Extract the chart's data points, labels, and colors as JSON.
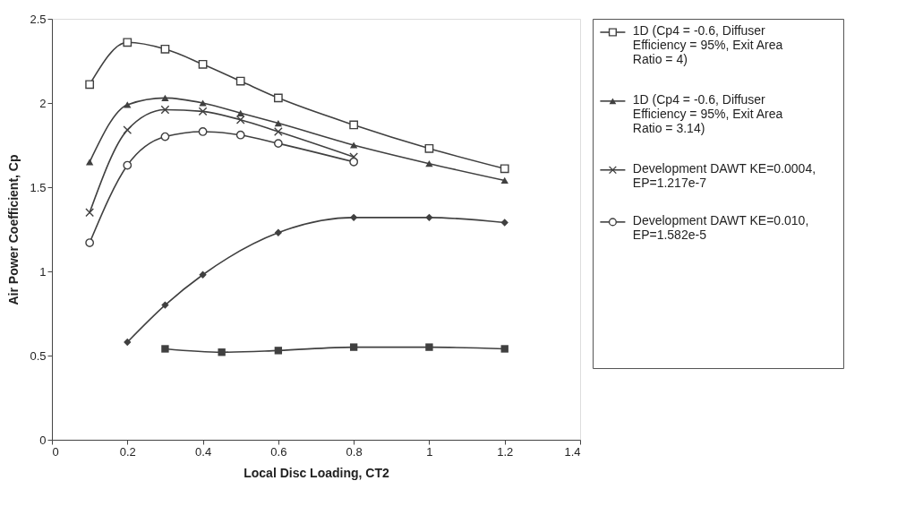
{
  "chart_data": {
    "type": "line",
    "xlabel": "Local Disc Loading, CT2",
    "ylabel": "Air Power Coefficient, Cp",
    "xlim": [
      0,
      1.4
    ],
    "xticks": [
      0,
      0.2,
      0.4,
      0.6,
      0.8,
      1,
      1.2,
      1.4
    ],
    "ylim": [
      0,
      2.5
    ],
    "yticks": [
      0,
      0.5,
      1,
      1.5,
      2,
      2.5
    ],
    "grid": false,
    "legend": "right",
    "series": [
      {
        "name": "1D (Cp4 = -0.6, Diffuser Efficiency = 95%, Exit Area Ratio = 4)",
        "color": "#404040",
        "marker": "square",
        "x": [
          0.1,
          0.2,
          0.3,
          0.4,
          0.5,
          0.6,
          0.8,
          1.0,
          1.2
        ],
        "values": [
          2.11,
          2.36,
          2.32,
          2.23,
          2.13,
          2.03,
          1.87,
          1.73,
          1.61
        ]
      },
      {
        "name": "1D (Cp4 = -0.6, Diffuser Efficiency = 95%, Exit Area Ratio = 3.14)",
        "color": "#404040",
        "marker": "triangle",
        "x": [
          0.1,
          0.2,
          0.3,
          0.4,
          0.5,
          0.6,
          0.8,
          1.0,
          1.2
        ],
        "values": [
          1.65,
          1.99,
          2.03,
          2.0,
          1.94,
          1.88,
          1.75,
          1.64,
          1.54
        ]
      },
      {
        "name": "Development DAWT KE=0.0004, EP=1.217e-7",
        "color": "#404040",
        "marker": "cross",
        "x": [
          0.1,
          0.2,
          0.3,
          0.4,
          0.5,
          0.6,
          0.8
        ],
        "values": [
          1.35,
          1.84,
          1.96,
          1.95,
          1.9,
          1.83,
          1.68
        ]
      },
      {
        "name": "Development DAWT KE=0.010, EP=1.582e-5",
        "color": "#404040",
        "marker": "circle",
        "x": [
          0.1,
          0.2,
          0.3,
          0.4,
          0.5,
          0.6,
          0.8
        ],
        "values": [
          1.17,
          1.63,
          1.8,
          1.83,
          1.81,
          1.76,
          1.65
        ]
      },
      {
        "color": "#404040",
        "marker": "diamond",
        "x": [
          0.2,
          0.3,
          0.4,
          0.6,
          0.8,
          1.0,
          1.2
        ],
        "values": [
          0.58,
          0.8,
          0.98,
          1.23,
          1.32,
          1.32,
          1.29
        ]
      },
      {
        "color": "#404040",
        "marker": "square",
        "x": [
          0.3,
          0.45,
          0.6,
          0.8,
          1.0,
          1.2
        ],
        "values": [
          0.54,
          0.52,
          0.53,
          0.55,
          0.55,
          0.54
        ]
      }
    ]
  }
}
